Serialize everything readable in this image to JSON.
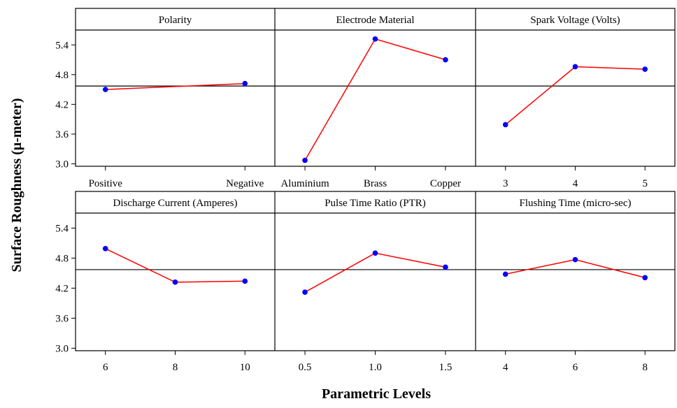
{
  "chart_data": {
    "type": "line",
    "ylabel": "Surface Roughness (μ-meter)",
    "xlabel": "Parametric Levels",
    "ylim": [
      2.95,
      5.7
    ],
    "yticks": [
      3.0,
      3.6,
      4.2,
      4.8,
      5.4
    ],
    "ytick_labels": [
      "3.0",
      "3.6",
      "4.2",
      "4.8",
      "5.4"
    ],
    "reference_mean": 4.57,
    "colors": {
      "line": "#ff0000",
      "point": "#0000ff",
      "axis": "#000000"
    },
    "panels": [
      {
        "title": "Polarity",
        "categories": [
          "Positive",
          "Negative"
        ],
        "values": [
          4.5,
          4.62
        ]
      },
      {
        "title": "Electrode Material",
        "categories": [
          "Aluminium",
          "Brass",
          "Copper"
        ],
        "values": [
          3.07,
          5.52,
          5.1
        ]
      },
      {
        "title": "Spark Voltage (Volts)",
        "categories": [
          "3",
          "4",
          "5"
        ],
        "values": [
          3.79,
          4.96,
          4.91
        ]
      },
      {
        "title": "Discharge Current (Amperes)",
        "categories": [
          "6",
          "8",
          "10"
        ],
        "values": [
          4.99,
          4.32,
          4.34
        ]
      },
      {
        "title": "Pulse Time Ratio (PTR)",
        "categories": [
          "0.5",
          "1.0",
          "1.5"
        ],
        "values": [
          4.12,
          4.9,
          4.62
        ]
      },
      {
        "title": "Flushing Time (micro-sec)",
        "categories": [
          "4",
          "6",
          "8"
        ],
        "values": [
          4.48,
          4.77,
          4.41
        ]
      }
    ]
  }
}
